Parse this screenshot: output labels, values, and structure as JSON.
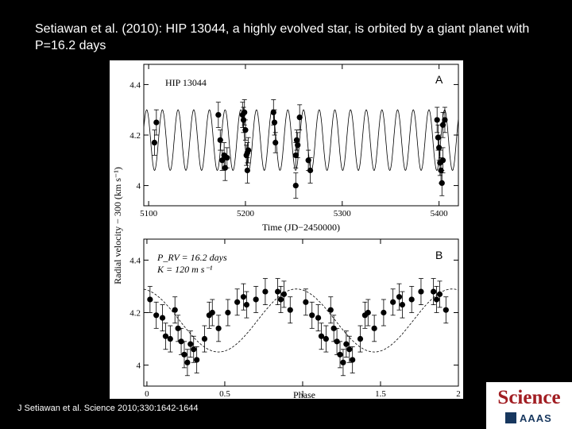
{
  "slide": {
    "title": "Setiawan et al. (2010): HIP 13044, a highly evolved star, is orbited by a giant planet with P=16.2 days",
    "citation": "J Setiawan et al. Science 2010;330:1642-1644"
  },
  "logo": {
    "word": "Science",
    "sub": "AAAS"
  },
  "chart_data": [
    {
      "type": "scatter",
      "panel_label": "A",
      "inset_label": "HIP 13044",
      "xlabel": "Time (JD−2450000)",
      "ylabel": "Radial velocity − 300 (km s⁻¹)",
      "xlim": [
        5095,
        5420
      ],
      "ylim": [
        3.92,
        4.48
      ],
      "xticks": [
        5100,
        5200,
        5300,
        5400
      ],
      "yticks": [
        4,
        4.2,
        4.4
      ],
      "model": {
        "period": 16.2,
        "amplitude": 0.12,
        "offset": 4.18,
        "phase0": 5098
      },
      "points": [
        {
          "x": 5106,
          "y": 4.17,
          "err": 0.05
        },
        {
          "x": 5108,
          "y": 4.25,
          "err": 0.05
        },
        {
          "x": 5172,
          "y": 4.28,
          "err": 0.05
        },
        {
          "x": 5174,
          "y": 4.18,
          "err": 0.04
        },
        {
          "x": 5176,
          "y": 4.1,
          "err": 0.04
        },
        {
          "x": 5178,
          "y": 4.12,
          "err": 0.05
        },
        {
          "x": 5179,
          "y": 4.07,
          "err": 0.05
        },
        {
          "x": 5181,
          "y": 4.11,
          "err": 0.04
        },
        {
          "x": 5197,
          "y": 4.28,
          "err": 0.05
        },
        {
          "x": 5198,
          "y": 4.26,
          "err": 0.05
        },
        {
          "x": 5199,
          "y": 4.29,
          "err": 0.05
        },
        {
          "x": 5200,
          "y": 4.22,
          "err": 0.04
        },
        {
          "x": 5201,
          "y": 4.12,
          "err": 0.04
        },
        {
          "x": 5202,
          "y": 4.13,
          "err": 0.04
        },
        {
          "x": 5203,
          "y": 4.14,
          "err": 0.05
        },
        {
          "x": 5202,
          "y": 4.06,
          "err": 0.05
        },
        {
          "x": 5229,
          "y": 4.29,
          "err": 0.05
        },
        {
          "x": 5230,
          "y": 4.25,
          "err": 0.05
        },
        {
          "x": 5231,
          "y": 4.17,
          "err": 0.04
        },
        {
          "x": 5252,
          "y": 4.12,
          "err": 0.05
        },
        {
          "x": 5253,
          "y": 4.18,
          "err": 0.04
        },
        {
          "x": 5254,
          "y": 4.16,
          "err": 0.05
        },
        {
          "x": 5252,
          "y": 4.0,
          "err": 0.05
        },
        {
          "x": 5256,
          "y": 4.27,
          "err": 0.05
        },
        {
          "x": 5265,
          "y": 4.1,
          "err": 0.04
        },
        {
          "x": 5267,
          "y": 4.06,
          "err": 0.05
        },
        {
          "x": 5398,
          "y": 4.26,
          "err": 0.05
        },
        {
          "x": 5399,
          "y": 4.19,
          "err": 0.05
        },
        {
          "x": 5400,
          "y": 4.15,
          "err": 0.05
        },
        {
          "x": 5401,
          "y": 4.09,
          "err": 0.05
        },
        {
          "x": 5402,
          "y": 4.06,
          "err": 0.05
        },
        {
          "x": 5403,
          "y": 4.01,
          "err": 0.05
        },
        {
          "x": 5404,
          "y": 4.24,
          "err": 0.05
        },
        {
          "x": 5406,
          "y": 4.26,
          "err": 0.05
        },
        {
          "x": 5404,
          "y": 4.1,
          "err": 0.05
        }
      ]
    },
    {
      "type": "scatter",
      "panel_label": "B",
      "annotation_lines": [
        "P_RV = 16.2 days",
        "K = 120 m s⁻¹"
      ],
      "xlabel": "Phase",
      "ylabel": "Radial velocity − 300 (km s⁻¹)",
      "xlim": [
        -0.02,
        2.0
      ],
      "ylim": [
        3.92,
        4.48
      ],
      "xticks": [
        0,
        0.5,
        1,
        1.5,
        2
      ],
      "yticks": [
        4,
        4.2,
        4.4
      ],
      "model": {
        "period": 1,
        "amplitude": 0.12,
        "offset": 4.17,
        "phase0": -0.04
      },
      "points": [
        {
          "x": 0.02,
          "y": 4.25,
          "err": 0.05
        },
        {
          "x": 0.06,
          "y": 4.19,
          "err": 0.05
        },
        {
          "x": 0.1,
          "y": 4.18,
          "err": 0.05
        },
        {
          "x": 0.12,
          "y": 4.11,
          "err": 0.05
        },
        {
          "x": 0.15,
          "y": 4.1,
          "err": 0.05
        },
        {
          "x": 0.18,
          "y": 4.21,
          "err": 0.05
        },
        {
          "x": 0.2,
          "y": 4.14,
          "err": 0.05
        },
        {
          "x": 0.22,
          "y": 4.09,
          "err": 0.05
        },
        {
          "x": 0.24,
          "y": 4.04,
          "err": 0.05
        },
        {
          "x": 0.26,
          "y": 4.01,
          "err": 0.05
        },
        {
          "x": 0.28,
          "y": 4.08,
          "err": 0.05
        },
        {
          "x": 0.3,
          "y": 4.06,
          "err": 0.05
        },
        {
          "x": 0.32,
          "y": 4.02,
          "err": 0.05
        },
        {
          "x": 0.37,
          "y": 4.1,
          "err": 0.05
        },
        {
          "x": 0.4,
          "y": 4.19,
          "err": 0.05
        },
        {
          "x": 0.42,
          "y": 4.2,
          "err": 0.05
        },
        {
          "x": 0.46,
          "y": 4.14,
          "err": 0.05
        },
        {
          "x": 0.52,
          "y": 4.2,
          "err": 0.05
        },
        {
          "x": 0.58,
          "y": 4.24,
          "err": 0.05
        },
        {
          "x": 0.62,
          "y": 4.26,
          "err": 0.05
        },
        {
          "x": 0.64,
          "y": 4.23,
          "err": 0.05
        },
        {
          "x": 0.7,
          "y": 4.25,
          "err": 0.05
        },
        {
          "x": 0.76,
          "y": 4.28,
          "err": 0.05
        },
        {
          "x": 0.84,
          "y": 4.28,
          "err": 0.05
        },
        {
          "x": 0.86,
          "y": 4.25,
          "err": 0.05
        },
        {
          "x": 0.88,
          "y": 4.27,
          "err": 0.05
        },
        {
          "x": 0.92,
          "y": 4.21,
          "err": 0.05
        },
        {
          "x": 1.02,
          "y": 4.24,
          "err": 0.05
        },
        {
          "x": 1.06,
          "y": 4.19,
          "err": 0.05
        },
        {
          "x": 1.1,
          "y": 4.18,
          "err": 0.05
        },
        {
          "x": 1.12,
          "y": 4.11,
          "err": 0.05
        },
        {
          "x": 1.15,
          "y": 4.1,
          "err": 0.05
        },
        {
          "x": 1.18,
          "y": 4.21,
          "err": 0.05
        },
        {
          "x": 1.2,
          "y": 4.14,
          "err": 0.05
        },
        {
          "x": 1.22,
          "y": 4.09,
          "err": 0.05
        },
        {
          "x": 1.24,
          "y": 4.04,
          "err": 0.05
        },
        {
          "x": 1.26,
          "y": 4.01,
          "err": 0.05
        },
        {
          "x": 1.28,
          "y": 4.08,
          "err": 0.05
        },
        {
          "x": 1.3,
          "y": 4.06,
          "err": 0.05
        },
        {
          "x": 1.32,
          "y": 4.02,
          "err": 0.05
        },
        {
          "x": 1.37,
          "y": 4.1,
          "err": 0.05
        },
        {
          "x": 1.4,
          "y": 4.19,
          "err": 0.05
        },
        {
          "x": 1.42,
          "y": 4.2,
          "err": 0.05
        },
        {
          "x": 1.46,
          "y": 4.14,
          "err": 0.05
        },
        {
          "x": 1.52,
          "y": 4.2,
          "err": 0.05
        },
        {
          "x": 1.58,
          "y": 4.24,
          "err": 0.05
        },
        {
          "x": 1.62,
          "y": 4.26,
          "err": 0.05
        },
        {
          "x": 1.64,
          "y": 4.23,
          "err": 0.05
        },
        {
          "x": 1.7,
          "y": 4.25,
          "err": 0.05
        },
        {
          "x": 1.76,
          "y": 4.28,
          "err": 0.05
        },
        {
          "x": 1.84,
          "y": 4.28,
          "err": 0.05
        },
        {
          "x": 1.86,
          "y": 4.25,
          "err": 0.05
        },
        {
          "x": 1.88,
          "y": 4.27,
          "err": 0.05
        },
        {
          "x": 1.92,
          "y": 4.21,
          "err": 0.05
        }
      ]
    }
  ],
  "colors": {
    "background": "#000000",
    "panel": "#ffffff",
    "ink": "#000000",
    "logo_red": "#a11d22",
    "logo_blue": "#17375e"
  }
}
